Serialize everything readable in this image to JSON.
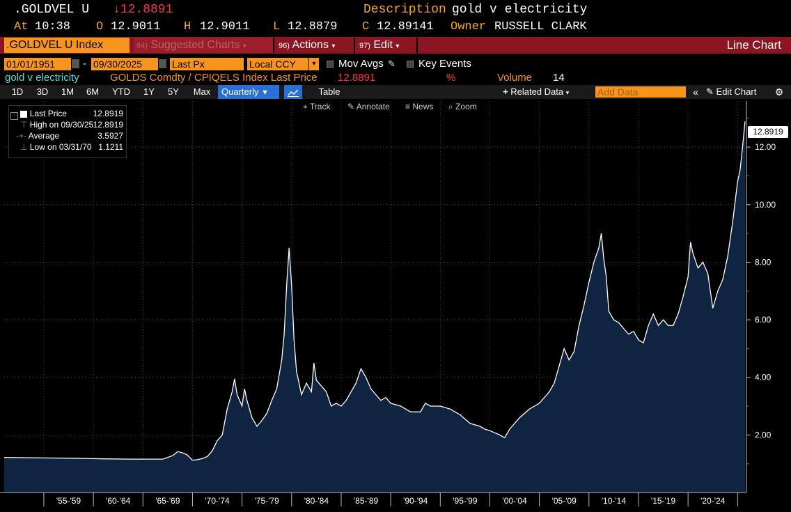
{
  "header": {
    "ticker": ".GOLDVEL U",
    "last_change": "↓12.8891",
    "description_label": "Description",
    "description": "gold v electricity",
    "at_label": "At",
    "time": "10:38",
    "open_label": "O",
    "open": "12.9011",
    "high_label": "H",
    "high": "12.9011",
    "low_label": "L",
    "low": "12.8879",
    "close_label": "C",
    "close": "12.89141",
    "owner_label": "Owner",
    "owner": "RUSSELL CLARK"
  },
  "toolbar": {
    "security": ".GOLDVEL U Index",
    "suggested_num": "94)",
    "suggested": "Suggested Charts",
    "actions_num": "96)",
    "actions": "Actions",
    "edit_num": "97)",
    "edit": "Edit",
    "chart_type": "Line Chart"
  },
  "controls": {
    "start_date": "01/01/1951",
    "dash": "-",
    "end_date": "09/30/2025",
    "field": "Last Px",
    "currency": "Local CCY",
    "mov_avgs": "Mov Avgs",
    "key_events": "Key Events"
  },
  "info": {
    "name": "gold v electricity",
    "formula": "GOLDS Comdty / CPIQELS Index Last Price",
    "last": "12.8891",
    "pct": "%",
    "volume_label": "Volume",
    "volume": "14"
  },
  "periods": [
    "1D",
    "3D",
    "1M",
    "6M",
    "YTD",
    "1Y",
    "5Y",
    "Max"
  ],
  "frequency": "Quarterly",
  "table_label": "Table",
  "related_data": "Related Data",
  "add_data_placeholder": "Add Data",
  "edit_chart": "Edit Chart",
  "tools": {
    "track": "Track",
    "annotate": "Annotate",
    "news": "News",
    "zoom": "Zoom"
  },
  "legend": {
    "last_label": "Last Price",
    "last_value": "12.8919",
    "high_label": "High on 09/30/25",
    "high_value": "12.8919",
    "avg_label": "Average",
    "avg_value": "3.5927",
    "low_label": "Low on 03/31/70",
    "low_value": "1.1211"
  },
  "price_tag": "12.8919",
  "colors": {
    "amber": "#f7941d",
    "bar_red": "#8b1520",
    "area_fill": "#0f2440",
    "line": "#ffffff",
    "active_blue": "#2a6fd6"
  },
  "chart_data": {
    "type": "area",
    "title": "",
    "xlabel": "",
    "ylabel": "",
    "xlim": [
      1951,
      2025.75
    ],
    "ylim": [
      0,
      13.6
    ],
    "yticks": [
      "2.00",
      "4.00",
      "6.00",
      "8.00",
      "10.00",
      "12.00"
    ],
    "ytick_values": [
      2,
      4,
      6,
      8,
      10,
      12
    ],
    "xtick_labels": [
      "'55-'59",
      "'60-'64",
      "'65-'69",
      "'70-'74",
      "'75-'79",
      "'80-'84",
      "'85-'89",
      "'90-'94",
      "'95-'99",
      "'00-'04",
      "'05-'09",
      "'10-'14",
      "'15-'19",
      "'20-'24"
    ],
    "xtick_centers": [
      1957.5,
      1962.5,
      1967.5,
      1972.5,
      1977.5,
      1982.5,
      1987.5,
      1992.5,
      1997.5,
      2002.5,
      2007.5,
      2012.5,
      2017.5,
      2022.5
    ],
    "grid": true,
    "series": [
      {
        "x": [
          1951,
          1955,
          1958,
          1961,
          1964,
          1967,
          1968,
          1968.5,
          1969,
          1969.5,
          1970,
          1970.5,
          1971,
          1971.5,
          1972,
          1972.5,
          1973,
          1973.5,
          1974,
          1974.25,
          1974.5,
          1975,
          1975.25,
          1975.5,
          1976,
          1976.5,
          1977,
          1977.5,
          1978,
          1978.5,
          1979,
          1979.25,
          1979.5,
          1979.75,
          1980,
          1980.25,
          1980.5,
          1981,
          1981.5,
          1982,
          1982.25,
          1982.5,
          1983,
          1983.5,
          1984,
          1984.5,
          1985,
          1985.5,
          1986,
          1986.5,
          1987,
          1987.5,
          1988,
          1988.5,
          1989,
          1989.5,
          1990,
          1991,
          1992,
          1993,
          1993.5,
          1994,
          1995,
          1996,
          1997,
          1998,
          1999,
          1999.5,
          2000,
          2001,
          2001.5,
          2002,
          2003,
          2004,
          2005,
          2006,
          2006.5,
          2007,
          2007.5,
          2008,
          2008.5,
          2009,
          2009.5,
          2010,
          2010.5,
          2011,
          2011.25,
          2011.5,
          2011.75,
          2012,
          2012.5,
          2013,
          2013.5,
          2014,
          2014.5,
          2015,
          2015.5,
          2016,
          2016.5,
          2017,
          2017.5,
          2018,
          2018.5,
          2019,
          2019.5,
          2020,
          2020.25,
          2020.5,
          2021,
          2021.5,
          2022,
          2022.5,
          2023,
          2023.5,
          2024,
          2024.5,
          2025,
          2025.25,
          2025.5,
          2025.75
        ],
        "y": [
          1.22,
          1.2,
          1.19,
          1.17,
          1.16,
          1.16,
          1.28,
          1.42,
          1.38,
          1.3,
          1.12,
          1.14,
          1.18,
          1.25,
          1.45,
          1.8,
          2.0,
          2.9,
          3.5,
          3.95,
          3.4,
          3.0,
          3.6,
          3.2,
          2.6,
          2.3,
          2.5,
          2.75,
          3.2,
          3.6,
          4.6,
          5.5,
          7.2,
          8.5,
          7.2,
          5.3,
          4.2,
          3.4,
          3.8,
          3.5,
          4.5,
          3.9,
          3.7,
          3.5,
          3.0,
          3.1,
          3.0,
          3.2,
          3.5,
          3.8,
          4.3,
          4.0,
          3.6,
          3.4,
          3.2,
          3.3,
          3.1,
          3.0,
          2.8,
          2.8,
          3.1,
          3.0,
          3.0,
          2.9,
          2.7,
          2.4,
          2.3,
          2.2,
          2.15,
          2.0,
          1.9,
          2.2,
          2.6,
          2.9,
          3.1,
          3.5,
          3.8,
          4.4,
          5.0,
          4.6,
          4.9,
          5.8,
          6.5,
          7.3,
          8.0,
          8.5,
          9.0,
          8.1,
          7.5,
          6.3,
          6.0,
          5.9,
          5.7,
          5.5,
          5.6,
          5.3,
          5.2,
          5.8,
          6.2,
          5.8,
          6.0,
          5.8,
          5.8,
          6.2,
          6.8,
          7.5,
          8.7,
          8.3,
          7.8,
          8.0,
          7.6,
          6.4,
          7.0,
          7.4,
          8.2,
          9.4,
          10.8,
          11.2,
          12.0,
          12.8919
        ]
      }
    ]
  }
}
